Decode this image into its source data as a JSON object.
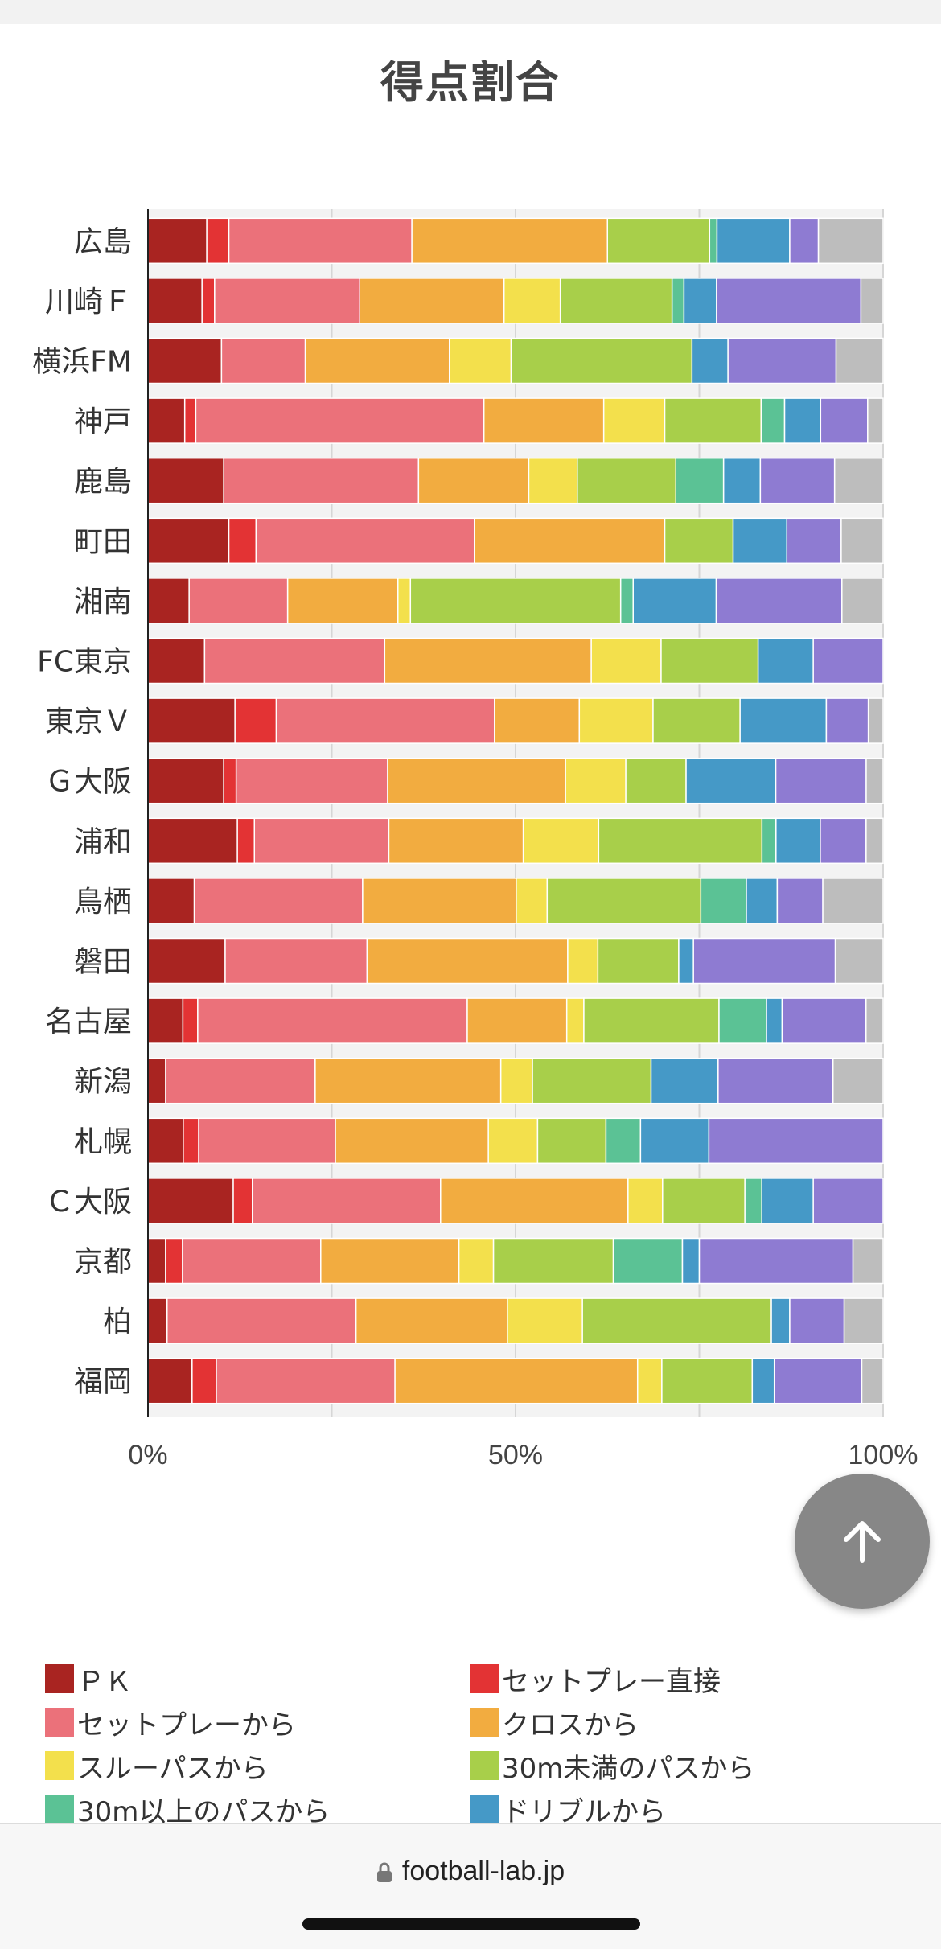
{
  "chart_data": {
    "type": "bar",
    "orientation": "horizontal",
    "stacked": "percent",
    "title": "得点割合",
    "xlim": [
      0,
      100
    ],
    "x_ticks": [
      "0%",
      "50%",
      "100%"
    ],
    "grid": true,
    "legend_position": "bottom",
    "categories": [
      "広島",
      "川崎Ｆ",
      "横浜FM",
      "神戸",
      "鹿島",
      "町田",
      "湘南",
      "FC東京",
      "東京Ｖ",
      "Ｇ大阪",
      "浦和",
      "鳥栖",
      "磐田",
      "名古屋",
      "新潟",
      "札幌",
      "Ｃ大阪",
      "京都",
      "柏",
      "福岡"
    ],
    "series": [
      {
        "name": "ＰＫ",
        "color": "#a92421",
        "values": [
          8,
          7.3,
          10,
          5,
          10.3,
          11,
          5.6,
          7.7,
          11.8,
          10.3,
          12.1,
          6.3,
          10.5,
          4.7,
          2.4,
          4.8,
          11.6,
          2.4,
          2.6,
          6
        ]
      },
      {
        "name": "セットプレー直接",
        "color": "#e33334",
        "values": [
          3,
          1.7,
          0,
          1.5,
          0,
          3.7,
          0,
          0,
          5.6,
          1.7,
          2.3,
          0,
          0,
          2,
          0,
          2.1,
          2.6,
          2.3,
          0,
          3.3
        ]
      },
      {
        "name": "セットプレーから",
        "color": "#eb717a",
        "values": [
          24.9,
          19.6,
          11.4,
          39.2,
          26.5,
          29.7,
          13.4,
          24.5,
          29.6,
          20.6,
          18.2,
          22.9,
          19.3,
          36.3,
          20.3,
          18.6,
          25.6,
          18.8,
          25.7,
          24.3
        ]
      },
      {
        "name": "クロスから",
        "color": "#f2ac40",
        "values": [
          26.6,
          19.5,
          19.6,
          16.3,
          15,
          25.9,
          15,
          28.1,
          11.5,
          24.2,
          18.2,
          20.9,
          27.3,
          13.4,
          25.2,
          20.8,
          25.5,
          18.8,
          20.6,
          33
        ]
      },
      {
        "name": "スルーパスから",
        "color": "#f3e04c",
        "values": [
          0,
          7.6,
          8.4,
          8.3,
          6.6,
          0,
          1.7,
          9.5,
          10,
          8.2,
          10.2,
          4.2,
          4.1,
          2.3,
          4.3,
          6.7,
          4.7,
          4.7,
          10.2,
          3.3
        ]
      },
      {
        "name": "30m未満のパスから",
        "color": "#a8cf4a",
        "values": [
          13.9,
          15.1,
          24.6,
          13.1,
          13.4,
          9.3,
          28.6,
          13.2,
          11.8,
          8.2,
          22.1,
          20.9,
          11,
          18.2,
          16.1,
          9.3,
          11.2,
          16.3,
          25.7,
          12.3
        ]
      },
      {
        "name": "30m以上のパスから",
        "color": "#5bc295",
        "values": [
          1,
          1.6,
          0,
          3.2,
          6.5,
          0,
          1.7,
          0,
          0,
          0,
          1.9,
          6.2,
          0,
          6.4,
          0,
          4.7,
          2.3,
          9.4,
          0,
          0
        ]
      },
      {
        "name": "ドリブルから",
        "color": "#4599c7",
        "values": [
          9.9,
          4.4,
          4.9,
          4.9,
          5,
          7.3,
          11.3,
          7.5,
          11.7,
          12.2,
          6,
          4.2,
          2,
          2.1,
          9.1,
          9.3,
          7,
          2.3,
          2.5,
          3
        ]
      },
      {
        "name": "",
        "color": "#8e7bd2",
        "values": [
          3.9,
          19.5,
          14.7,
          6.4,
          10.1,
          7.4,
          17.1,
          9.5,
          5.7,
          12.3,
          6.2,
          6.2,
          19.3,
          11.3,
          15.6,
          23.7,
          9.5,
          20.9,
          7.4,
          11.9
        ]
      },
      {
        "name": "",
        "color": "#bdbdbd",
        "values": [
          8.8,
          3,
          6.4,
          2.1,
          6.6,
          5.7,
          5.6,
          0,
          2,
          2.3,
          2.3,
          8.2,
          6.5,
          2.3,
          6.8,
          0,
          0,
          4.1,
          5.3,
          2.9
        ]
      }
    ]
  },
  "legend_items": [
    {
      "label": "ＰＫ",
      "color": "#a92421"
    },
    {
      "label": "セットプレー直接",
      "color": "#e33334"
    },
    {
      "label": "セットプレーから",
      "color": "#eb717a"
    },
    {
      "label": "クロスから",
      "color": "#f2ac40"
    },
    {
      "label": "スルーパスから",
      "color": "#f3e04c"
    },
    {
      "label": "30m未満のパスから",
      "color": "#a8cf4a"
    },
    {
      "label": "30m以上のパスから",
      "color": "#5bc295"
    },
    {
      "label": "ドリブルから",
      "color": "#4599c7"
    }
  ],
  "browser": {
    "url": "football-lab.jp"
  },
  "icons": {
    "scroll_top": "arrow-up-icon",
    "lock": "lock-icon"
  }
}
